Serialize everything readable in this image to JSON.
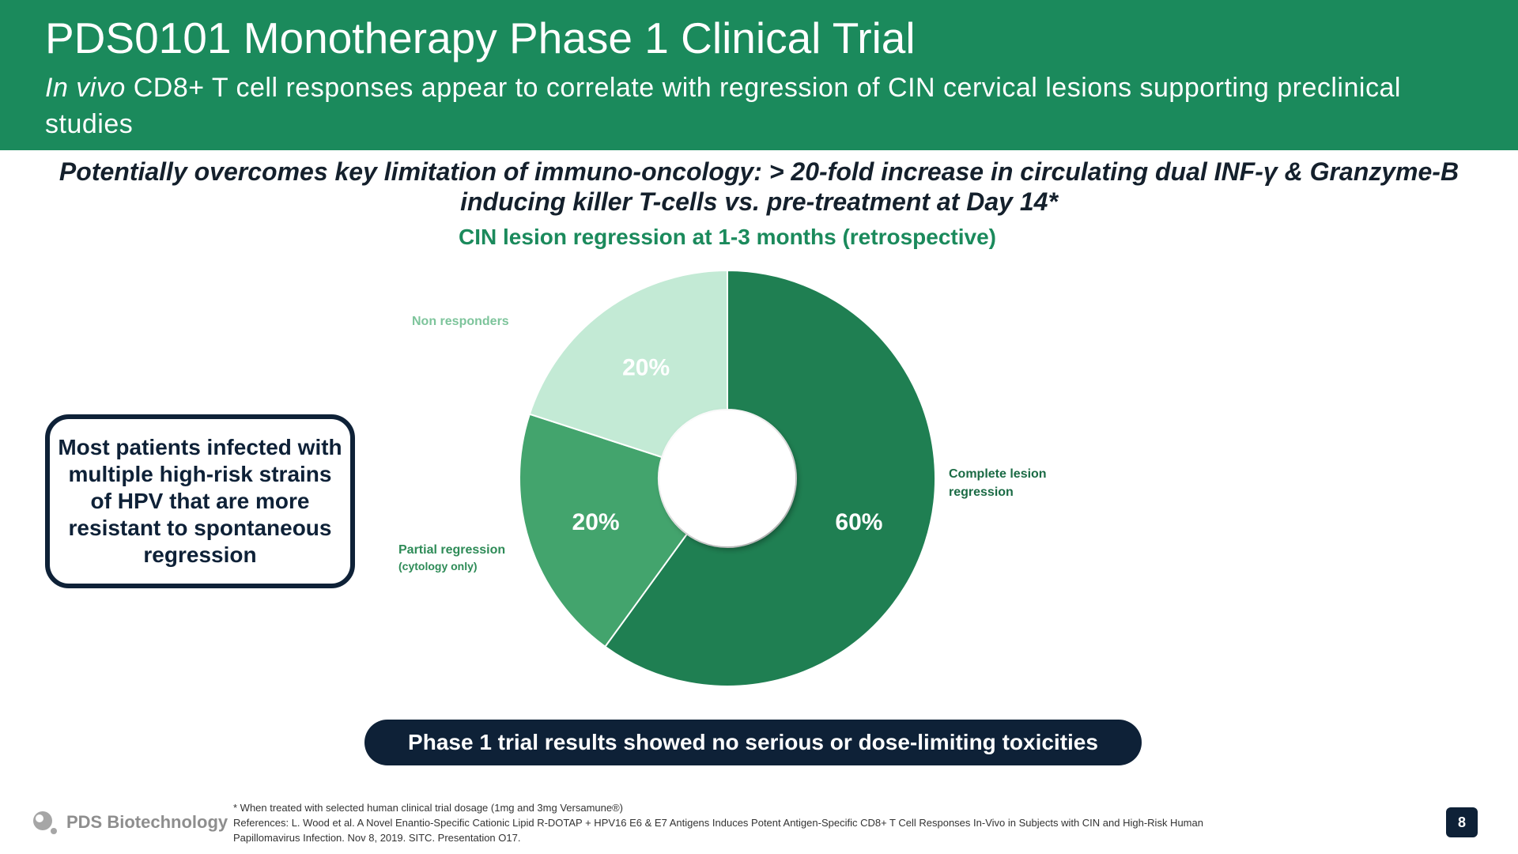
{
  "header": {
    "title": "PDS0101 Monotherapy Phase 1 Clinical Trial",
    "subtitle_italic": "In vivo",
    "subtitle_rest": " CD8+ T cell responses appear to correlate with regression of CIN cervical lesions supporting preclinical studies"
  },
  "headline": "Potentially overcomes key limitation of immuno-oncology: > 20-fold increase in circulating dual INF-γ & Granzyme-B inducing killer T-cells vs. pre-treatment at Day 14*",
  "chart_data": {
    "type": "pie",
    "title": "CIN lesion regression at 1-3 months (retrospective)",
    "donut": true,
    "slices": [
      {
        "label_lines": [
          "Complete lesion",
          "regression"
        ],
        "value": 60,
        "display": "60%",
        "color": "#1f7f52",
        "label_color": "#1b6b45"
      },
      {
        "label_lines": [
          "Partial regression",
          "(cytology only)"
        ],
        "value": 20,
        "display": "20%",
        "color": "#43a46d",
        "label_color": "#2e8b57"
      },
      {
        "label_lines": [
          "Non responders"
        ],
        "value": 20,
        "display": "20%",
        "color": "#c3ead5",
        "label_color": "#7dc49b"
      }
    ]
  },
  "callout": "Most patients infected with multiple high-risk strains of HPV that are more resistant to spontaneous regression",
  "banner": "Phase 1 trial results showed no serious or dose-limiting toxicities",
  "footer": {
    "logo_text": "PDS Biotechnology",
    "footnote_1": "* When treated with selected human clinical trial dosage (1mg and 3mg Versamune®)",
    "footnote_2": "References: L. Wood et al. A Novel Enantio-Specific Cationic Lipid R-DOTAP + HPV16 E6 & E7 Antigens Induces Potent Antigen-Specific CD8+ T Cell Responses In-Vivo in Subjects with CIN and High-Risk Human Papillomavirus Infection. Nov 8, 2019. SITC. Presentation O17.",
    "page_number": "8"
  },
  "colors": {
    "brand_green": "#1b8a5c",
    "navy": "#0e2137"
  }
}
